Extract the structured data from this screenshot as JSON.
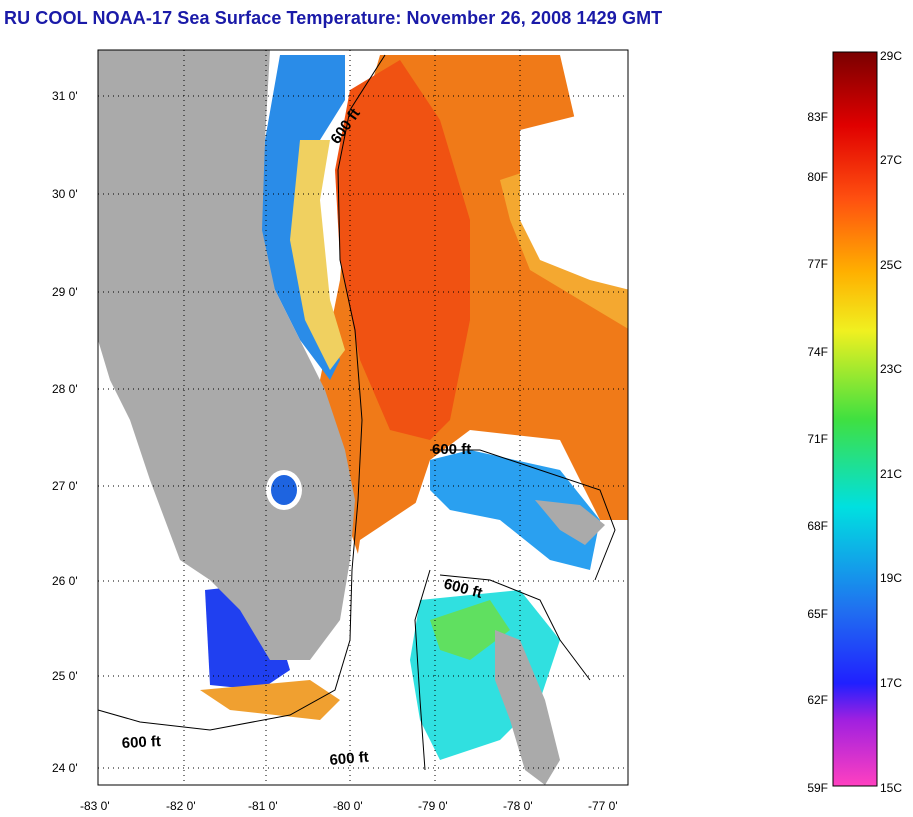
{
  "title": "RU COOL  NOAA-17  Sea Surface Temperature:  November 26, 2008 1429 GMT",
  "lat_ticks": [
    "31 0'",
    "30 0'",
    "29 0'",
    "28 0'",
    "27 0'",
    "26 0'",
    "25 0'",
    "24 0'"
  ],
  "lon_ticks": [
    "-83 0'",
    "-82 0'",
    "-81 0'",
    "-80 0'",
    "-79 0'",
    "-78 0'",
    "-77 0'"
  ],
  "contour_label": "600 ft",
  "colorbar": {
    "fahrenheit": [
      "83F",
      "80F",
      "77F",
      "74F",
      "71F",
      "68F",
      "65F",
      "62F",
      "59F"
    ],
    "celsius": [
      "29C",
      "27C",
      "25C",
      "23C",
      "21C",
      "19C",
      "17C",
      "15C"
    ]
  },
  "colors": {
    "title": "#1a1aa8",
    "land": "#aaaaaa",
    "warm_water": "#f06a10",
    "cool_water": "#1e88e8",
    "cloud": "#ffffff"
  }
}
